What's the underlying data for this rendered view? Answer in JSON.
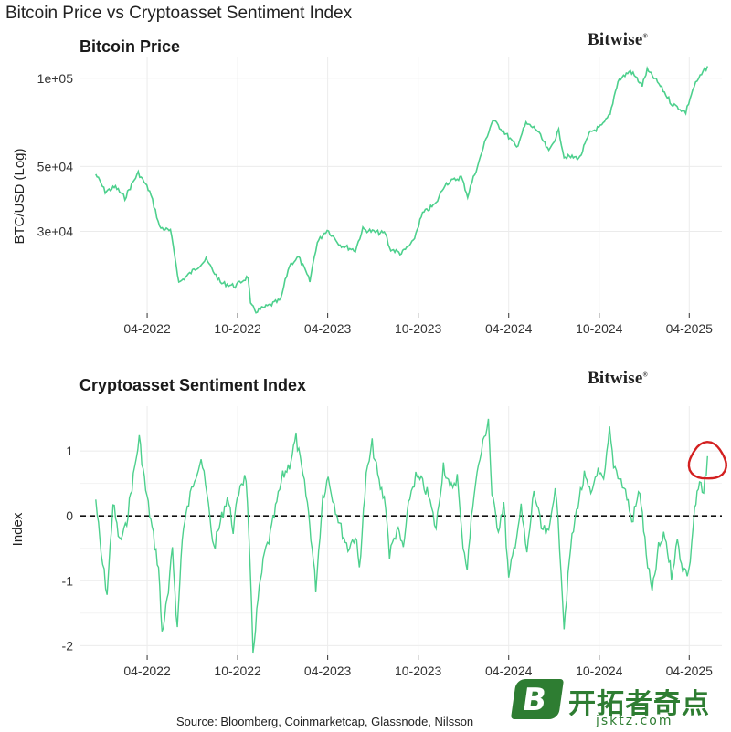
{
  "figure": {
    "title": "Bitcoin Price vs Cryptoasset Sentiment Index",
    "source": "Source: Bloomberg, Coinmarketcap, Glassnode, Nilsson",
    "brand": "Bitwise",
    "brand_mark": "®",
    "watermark": {
      "glyph": "B",
      "text": "开拓者奇点",
      "sub": "jsktz.com",
      "color": "#2e7d32"
    }
  },
  "chart_data": [
    {
      "type": "line",
      "title": "Bitcoin Price",
      "ylabel": "BTC/USD (Log)",
      "xlabel": "",
      "yscale": "log",
      "ylim": [
        16000,
        112000
      ],
      "grid": true,
      "line_color": "#4dd08d",
      "xticks": [
        "04-2022",
        "10-2022",
        "04-2023",
        "10-2023",
        "04-2024",
        "10-2024",
        "04-2025"
      ],
      "yticks": [
        {
          "value": 100000,
          "label": "1e+05"
        },
        {
          "value": 50000,
          "label": "5e+04"
        },
        {
          "value": 30000,
          "label": "3e+04"
        }
      ],
      "series": [
        {
          "x": [
            "2022-01-01",
            "2022-01-20",
            "2022-02-10",
            "2022-03-01",
            "2022-03-28",
            "2022-04-20",
            "2022-05-10",
            "2022-06-01",
            "2022-06-18",
            "2022-07-10",
            "2022-08-12",
            "2022-09-10",
            "2022-10-10",
            "2022-11-05",
            "2022-11-10",
            "2022-11-21",
            "2022-12-20",
            "2023-01-10",
            "2023-01-28",
            "2023-02-15",
            "2023-03-10",
            "2023-03-25",
            "2023-04-14",
            "2023-05-10",
            "2023-06-10",
            "2023-06-25",
            "2023-07-20",
            "2023-08-10",
            "2023-08-18",
            "2023-09-11",
            "2023-10-05",
            "2023-10-24",
            "2023-11-20",
            "2023-12-08",
            "2024-01-10",
            "2024-01-23",
            "2024-02-15",
            "2024-03-14",
            "2024-04-15",
            "2024-05-01",
            "2024-05-20",
            "2024-06-10",
            "2024-07-05",
            "2024-07-25",
            "2024-08-05",
            "2024-09-06",
            "2024-09-27",
            "2024-10-20",
            "2024-11-06",
            "2024-11-22",
            "2024-12-17",
            "2025-01-10",
            "2025-01-20",
            "2025-02-10",
            "2025-03-10",
            "2025-04-08",
            "2025-04-25",
            "2025-05-10",
            "2025-05-22"
          ],
          "y": [
            47000,
            41000,
            42500,
            39000,
            47500,
            41000,
            31000,
            30000,
            20000,
            21500,
            24000,
            20000,
            19500,
            21000,
            16800,
            16000,
            16800,
            17500,
            23000,
            24500,
            20200,
            27500,
            30400,
            27000,
            25800,
            30500,
            29800,
            29500,
            26200,
            25200,
            27600,
            34500,
            37300,
            43500,
            46000,
            39500,
            51800,
            72000,
            63000,
            58000,
            70000,
            67000,
            56000,
            66000,
            54000,
            53500,
            65500,
            68500,
            75000,
            98000,
            106000,
            94500,
            106500,
            97000,
            82000,
            76500,
            94000,
            103000,
            110000
          ]
        }
      ]
    },
    {
      "type": "line",
      "title": "Cryptoasset Sentiment Index",
      "ylabel": "Index",
      "xlabel": "",
      "ylim": [
        -2.15,
        1.55
      ],
      "grid": true,
      "line_color": "#4dd08d",
      "reference_line": {
        "y": 0,
        "style": "dashed",
        "color": "#111111"
      },
      "highlight": {
        "x": "2025-05-22",
        "y": 0.92,
        "shape": "hand-drawn circle",
        "color": "#d32020"
      },
      "xticks": [
        "04-2022",
        "10-2022",
        "04-2023",
        "10-2023",
        "04-2024",
        "10-2024",
        "04-2025"
      ],
      "yticks": [
        {
          "value": 1,
          "label": "1"
        },
        {
          "value": 0,
          "label": "0"
        },
        {
          "value": -1,
          "label": "-1"
        },
        {
          "value": -2,
          "label": "-2"
        }
      ],
      "series": [
        {
          "x": [
            "2022-01-01",
            "2022-01-12",
            "2022-01-24",
            "2022-02-05",
            "2022-02-18",
            "2022-03-02",
            "2022-03-18",
            "2022-03-30",
            "2022-04-12",
            "2022-04-25",
            "2022-05-08",
            "2022-05-15",
            "2022-05-28",
            "2022-06-05",
            "2022-06-15",
            "2022-06-25",
            "2022-07-08",
            "2022-07-20",
            "2022-08-02",
            "2022-08-14",
            "2022-08-28",
            "2022-09-10",
            "2022-09-24",
            "2022-10-06",
            "2022-10-20",
            "2022-11-01",
            "2022-11-09",
            "2022-11-15",
            "2022-11-25",
            "2022-12-08",
            "2022-12-20",
            "2023-01-02",
            "2023-01-14",
            "2023-01-28",
            "2023-02-10",
            "2023-02-24",
            "2023-03-05",
            "2023-03-12",
            "2023-03-22",
            "2023-04-05",
            "2023-04-16",
            "2023-04-28",
            "2023-05-12",
            "2023-05-26",
            "2023-06-10",
            "2023-06-18",
            "2023-07-02",
            "2023-07-14",
            "2023-07-28",
            "2023-08-10",
            "2023-08-18",
            "2023-09-02",
            "2023-09-15",
            "2023-09-28",
            "2023-10-10",
            "2023-10-24",
            "2023-11-05",
            "2023-11-20",
            "2023-12-05",
            "2023-12-18",
            "2024-01-02",
            "2024-01-11",
            "2024-01-22",
            "2024-02-05",
            "2024-02-20",
            "2024-03-05",
            "2024-03-12",
            "2024-03-25",
            "2024-04-05",
            "2024-04-15",
            "2024-04-28",
            "2024-05-10",
            "2024-05-22",
            "2024-06-05",
            "2024-06-20",
            "2024-07-05",
            "2024-07-18",
            "2024-07-30",
            "2024-08-05",
            "2024-08-18",
            "2024-09-02",
            "2024-09-15",
            "2024-09-28",
            "2024-10-10",
            "2024-10-24",
            "2024-11-05",
            "2024-11-13",
            "2024-11-25",
            "2024-12-10",
            "2024-12-20",
            "2025-01-05",
            "2025-01-18",
            "2025-01-30",
            "2025-02-12",
            "2025-02-25",
            "2025-03-10",
            "2025-03-22",
            "2025-04-02",
            "2025-04-14",
            "2025-04-26",
            "2025-05-06",
            "2025-05-14",
            "2025-05-22"
          ],
          "y": [
            0.25,
            -0.6,
            -1.2,
            0.2,
            -0.4,
            -0.2,
            0.6,
            1.2,
            0.4,
            -0.2,
            -0.8,
            -1.8,
            -1.2,
            -0.5,
            -1.75,
            -0.3,
            0.2,
            0.6,
            0.9,
            0.3,
            -0.5,
            -0.1,
            0.3,
            -0.2,
            0.5,
            0.6,
            -0.8,
            -2.1,
            -1.3,
            -0.6,
            -0.3,
            0.2,
            0.6,
            0.8,
            1.2,
            0.6,
            0.2,
            -0.3,
            -1.1,
            0.3,
            0.6,
            0.2,
            -0.2,
            -0.5,
            -0.3,
            -0.8,
            0.6,
            1.1,
            0.5,
            0.2,
            -0.6,
            -0.2,
            -0.5,
            0.3,
            0.6,
            0.5,
            0.3,
            -0.2,
            0.8,
            0.4,
            0.6,
            -0.3,
            -0.8,
            0.4,
            1.0,
            1.5,
            0.3,
            -0.2,
            0.2,
            -1.0,
            -0.4,
            0.1,
            -0.6,
            0.4,
            -0.2,
            -0.3,
            0.5,
            -0.8,
            -1.7,
            -0.5,
            0.2,
            0.6,
            0.3,
            0.7,
            0.5,
            1.3,
            0.8,
            0.6,
            0.3,
            -0.1,
            0.4,
            -0.6,
            -1.2,
            -0.5,
            -0.3,
            -0.9,
            -0.4,
            -0.8,
            -0.9,
            0.1,
            0.5,
            0.3,
            0.92
          ]
        }
      ]
    }
  ]
}
